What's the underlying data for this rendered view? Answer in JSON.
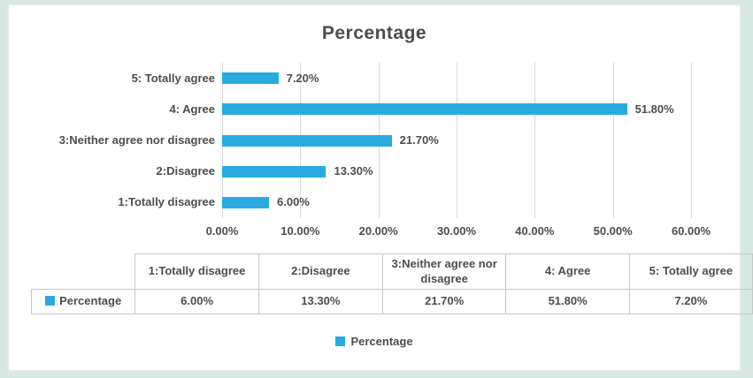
{
  "colors": {
    "accent": "#29abe2",
    "page_background": "#d7e8e2",
    "frame_border": "#e7e7e7",
    "gridline": "#d9d9d9",
    "text": "#4d4d4d",
    "table_border": "#c6c6c6"
  },
  "chart_data": {
    "type": "bar",
    "orientation": "horizontal",
    "title": "Percentage",
    "categories": [
      "1:Totally disagree",
      "2:Disagree",
      "3:Neither agree nor disagree",
      "4: Agree",
      "5: Totally agree"
    ],
    "series": [
      {
        "name": "Percentage",
        "values": [
          6.0,
          13.3,
          21.7,
          51.8,
          7.2
        ]
      }
    ],
    "value_labels": [
      "6.00%",
      "13.30%",
      "21.70%",
      "51.80%",
      "7.20%"
    ],
    "category_axis_order_top_to_bottom": [
      "5: Totally agree",
      "4: Agree",
      "3:Neither agree nor disagree",
      "2:Disagree",
      "1:Totally disagree"
    ],
    "x_axis": {
      "min": 0,
      "max": 60,
      "step": 10,
      "ticks": [
        "0.00%",
        "10.00%",
        "20.00%",
        "30.00%",
        "40.00%",
        "50.00%",
        "60.00%"
      ]
    },
    "grid": "vertical-only",
    "legend": {
      "position": "bottom",
      "label": "Percentage"
    },
    "data_table": {
      "row_label": "Percentage",
      "columns": [
        "1:Totally disagree",
        "2:Disagree",
        "3:Neither agree nor disagree",
        "4: Agree",
        "5: Totally agree"
      ],
      "values": [
        "6.00%",
        "13.30%",
        "21.70%",
        "51.80%",
        "7.20%"
      ]
    }
  }
}
